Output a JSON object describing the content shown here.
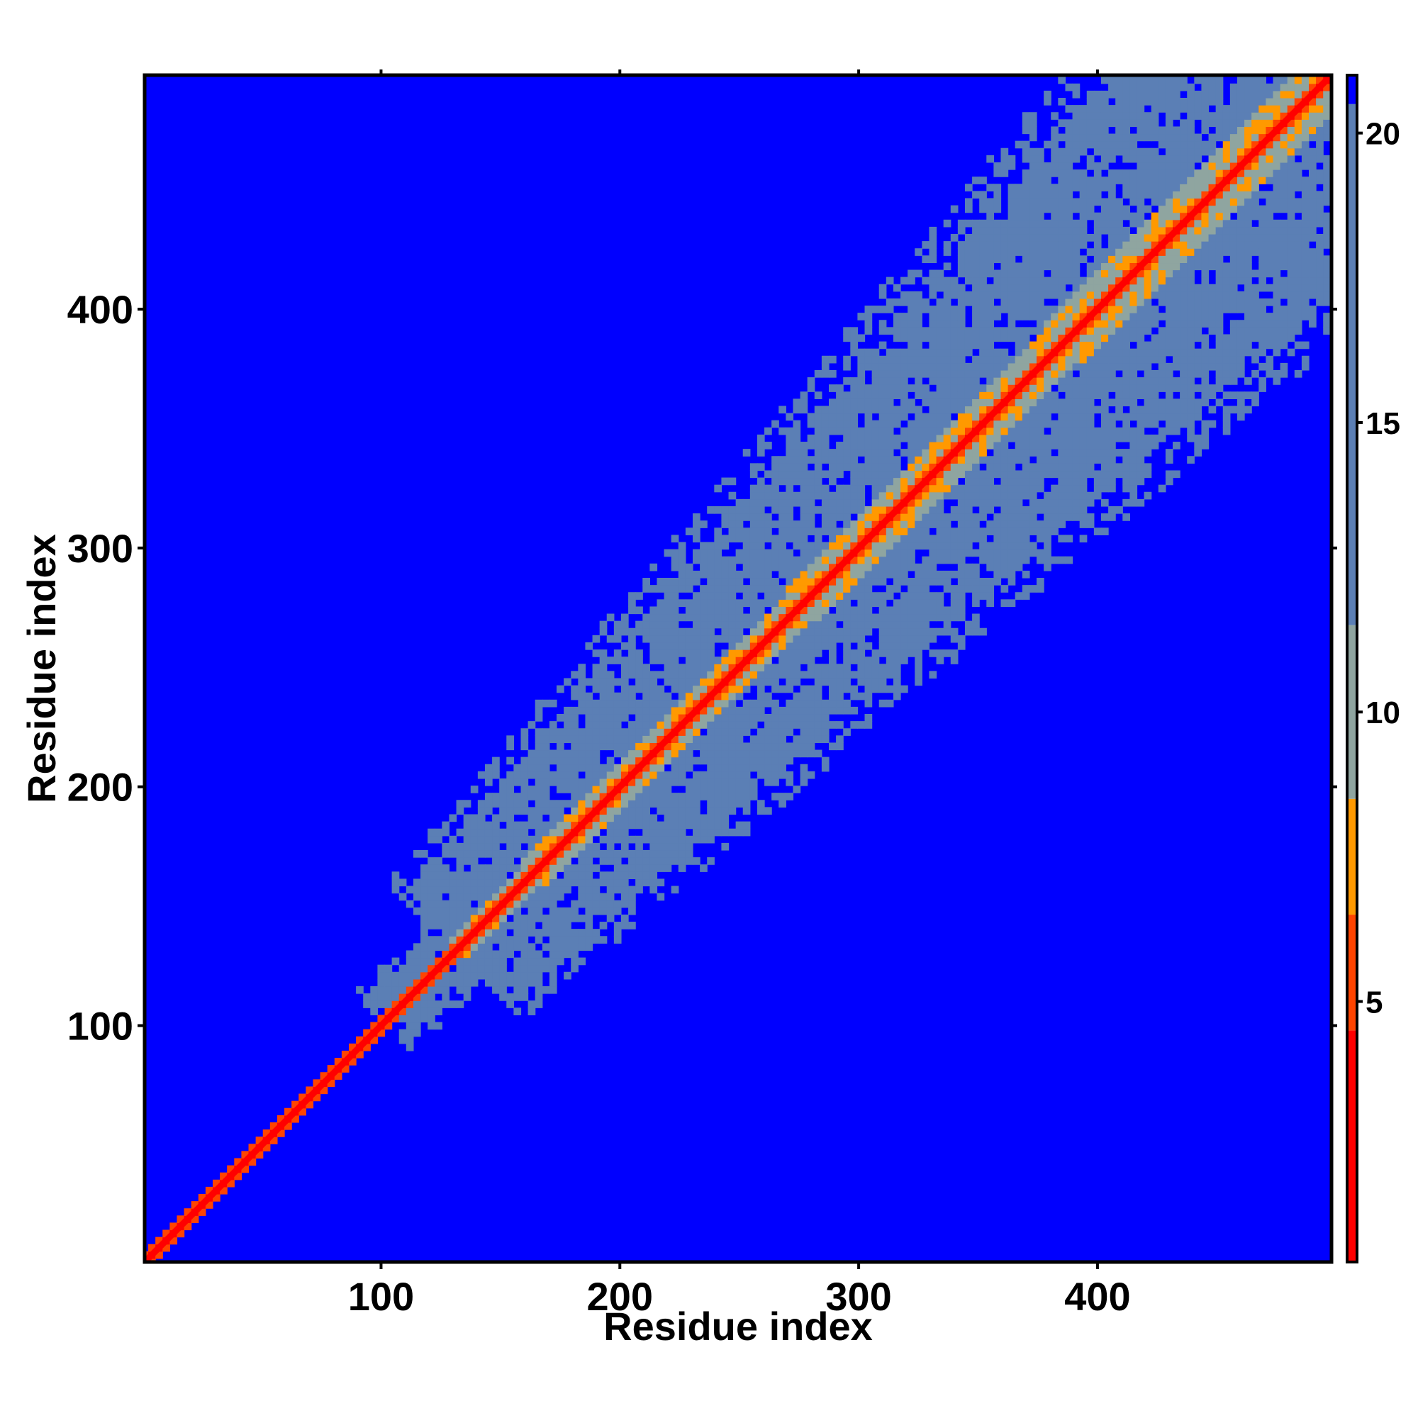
{
  "chart_data": {
    "type": "heatmap",
    "title": "",
    "xlabel": "Residue index",
    "ylabel": "Residue index",
    "xlim": [
      1,
      498
    ],
    "ylim": [
      1,
      498
    ],
    "x_ticks": [
      100,
      200,
      300,
      400
    ],
    "y_ticks": [
      100,
      200,
      300,
      400
    ],
    "tick_labels": {
      "x": [
        "100",
        "200",
        "300",
        "400"
      ],
      "y": [
        "100",
        "200",
        "300",
        "400"
      ]
    },
    "colorbar": {
      "range": [
        0.5,
        21
      ],
      "ticks": [
        5,
        10,
        15,
        20
      ],
      "tick_labels": [
        "5",
        "10",
        "15",
        "20"
      ],
      "colors": [
        "#ff0000",
        "#ff4400",
        "#ff9900",
        "#e8c060",
        "#8fa5a0",
        "#5b7fb5",
        "#0000ff"
      ],
      "segments": [
        {
          "from": 0.5,
          "to": 4.5,
          "color": "#ff0000"
        },
        {
          "from": 4.5,
          "to": 6.5,
          "color": "#ff4400"
        },
        {
          "from": 6.5,
          "to": 8.5,
          "color": "#ff9900"
        },
        {
          "from": 8.5,
          "to": 11.5,
          "color": "#8fa5a0"
        },
        {
          "from": 11.5,
          "to": 20.5,
          "color": "#5b7fb5"
        },
        {
          "from": 20.5,
          "to": 21,
          "color": "#0000ff"
        }
      ]
    },
    "description_of_values": "Pairwise residue distance map: ~0 on the diagonal (red), small distances in a band near the diagonal (orange/yellow), intermediate distances in a broad band widening from residue ~100 to ~498 (steel blue), and large distances elsewhere (blue).",
    "bands": [
      {
        "residue_start": 1,
        "residue_end": 100,
        "half_width": 3
      },
      {
        "residue_start": 100,
        "residue_end": 130,
        "half_width": 20
      },
      {
        "residue_start": 130,
        "residue_end": 498,
        "half_width_start": 45,
        "half_width_end": 100
      }
    ],
    "grid": false,
    "legend": "colorbar-right"
  }
}
